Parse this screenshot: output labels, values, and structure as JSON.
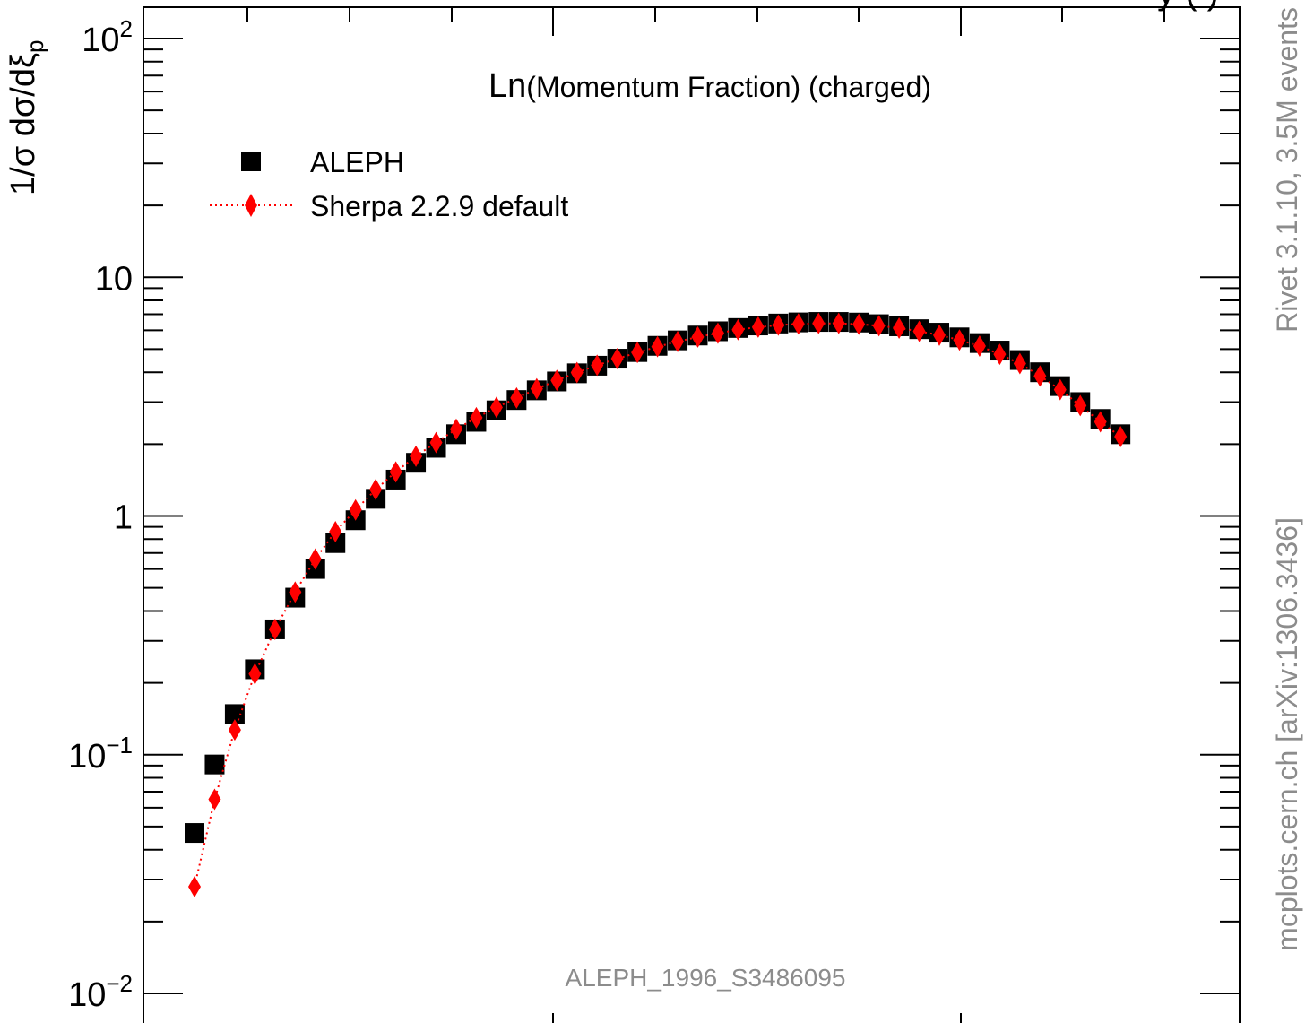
{
  "chart_data": {
    "type": "scatter",
    "title": "Ln(Momentum Fraction) (charged)",
    "title_prefix": "Ln",
    "title_rest": "(Momentum Fraction) (charged)",
    "ylabel": "1/σ dσ/dξ_p",
    "ylabel_main": "1/σ dσ/dξ",
    "ylabel_sub": "p",
    "xlabel": "",
    "yscale": "log",
    "ylim": [
      0.01,
      100
    ],
    "y_ticks": [
      {
        "base": "10",
        "exp": "2",
        "value": 100
      },
      {
        "base": "10",
        "exp": "",
        "value": 10
      },
      {
        "base": "1",
        "exp": "",
        "value": 1
      },
      {
        "base": "10",
        "exp": "−1",
        "value": 0.1
      },
      {
        "base": "10",
        "exp": "−2",
        "value": 0.01
      }
    ],
    "grid": false,
    "legend_position": "top-left",
    "series": [
      {
        "name": "ALEPH",
        "marker": "square",
        "color": "#000000",
        "values": [
          0.047,
          0.091,
          0.148,
          0.228,
          0.335,
          0.455,
          0.6,
          0.77,
          0.96,
          1.18,
          1.42,
          1.67,
          1.93,
          2.2,
          2.48,
          2.77,
          3.06,
          3.36,
          3.66,
          3.96,
          4.26,
          4.56,
          4.86,
          5.16,
          5.44,
          5.7,
          5.94,
          6.13,
          6.28,
          6.4,
          6.47,
          6.5,
          6.5,
          6.46,
          6.36,
          6.23,
          6.06,
          5.86,
          5.6,
          5.3,
          4.93,
          4.5,
          4.0,
          3.5,
          3.0,
          2.55,
          2.2
        ]
      },
      {
        "name": "Sherpa 2.2.9 default",
        "marker": "diamond",
        "line": "dotted",
        "color": "#ff0000",
        "values": [
          0.028,
          0.065,
          0.127,
          0.218,
          0.335,
          0.48,
          0.66,
          0.86,
          1.06,
          1.29,
          1.53,
          1.78,
          2.03,
          2.31,
          2.58,
          2.85,
          3.12,
          3.41,
          3.7,
          3.99,
          4.28,
          4.56,
          4.84,
          5.12,
          5.38,
          5.62,
          5.83,
          6.03,
          6.18,
          6.3,
          6.38,
          6.41,
          6.41,
          6.36,
          6.26,
          6.12,
          5.94,
          5.72,
          5.46,
          5.15,
          4.76,
          4.35,
          3.86,
          3.38,
          2.9,
          2.48,
          2.15
        ]
      }
    ]
  },
  "watermark": "ALEPH_1996_S3486095",
  "side_text_top": "Rivet 3.1.10,  3.5M events",
  "side_text_bottom": "mcplots.cern.ch [arXiv:1306.3436]",
  "header_partial_text": "y   (        )"
}
